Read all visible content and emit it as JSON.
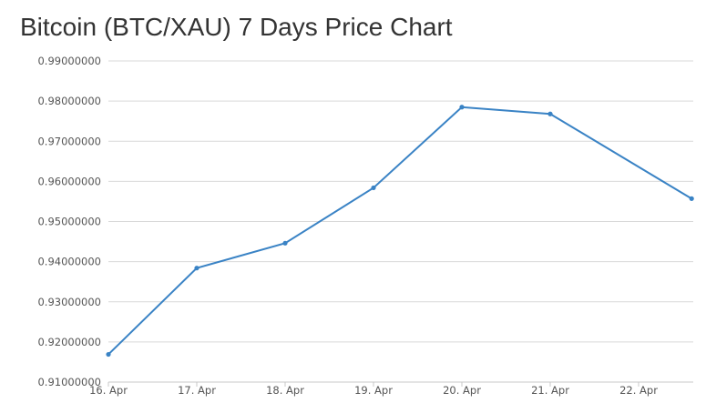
{
  "chart_data": {
    "type": "line",
    "title": "Bitcoin (BTC/XAU) 7 Days Price Chart",
    "xlabel": "",
    "ylabel": "",
    "x_tick_labels": [
      "16. Apr",
      "17. Apr",
      "18. Apr",
      "19. Apr",
      "20. Apr",
      "21. Apr",
      "22. Apr"
    ],
    "y_tick_labels": [
      "0.91000000",
      "0.92000000",
      "0.93000000",
      "0.94000000",
      "0.95000000",
      "0.96000000",
      "0.97000000",
      "0.98000000",
      "0.99000000"
    ],
    "ylim": [
      0.91,
      0.99
    ],
    "xlim": [
      "16. Apr",
      "22. Apr + 0.6 day"
    ],
    "grid": true,
    "legend": "none",
    "series": [
      {
        "color": "#3a83c5",
        "x": [
          "16. Apr",
          "17. Apr",
          "18. Apr",
          "19. Apr",
          "20. Apr",
          "21. Apr",
          "22. Apr (end)"
        ],
        "values": [
          0.9169,
          0.9384,
          0.9446,
          0.9584,
          0.9785,
          0.9768,
          0.9557
        ]
      }
    ]
  }
}
